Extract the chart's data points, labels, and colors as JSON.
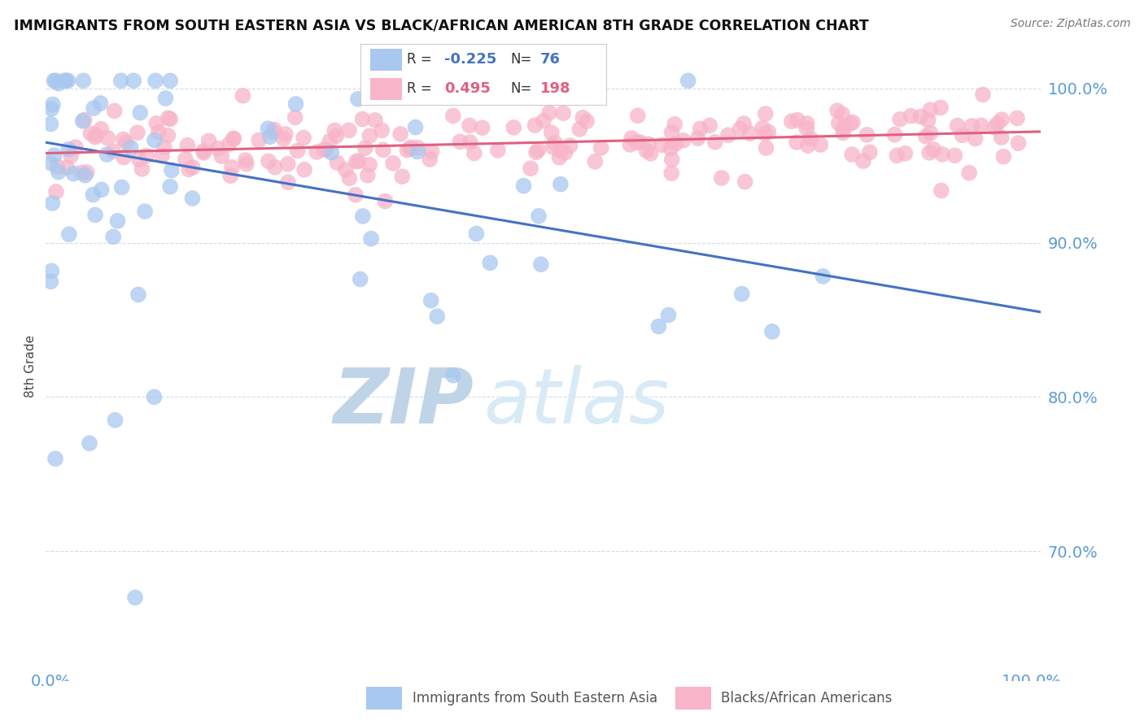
{
  "title": "IMMIGRANTS FROM SOUTH EASTERN ASIA VS BLACK/AFRICAN AMERICAN 8TH GRADE CORRELATION CHART",
  "source": "Source: ZipAtlas.com",
  "ylabel": "8th Grade",
  "blue_R": -0.225,
  "blue_N": 76,
  "pink_R": 0.495,
  "pink_N": 198,
  "blue_color": "#a8c8f0",
  "pink_color": "#f8b4c8",
  "blue_line_color": "#4472c4",
  "pink_line_color": "#e06080",
  "watermark_zip_color": "#c8d8ec",
  "watermark_atlas_color": "#d8e8f4",
  "axis_label_color": "#5b9bd5",
  "grid_color": "#d0dde8",
  "background_color": "#ffffff",
  "ylim_min": 0.625,
  "ylim_max": 1.015,
  "xlim_min": -0.005,
  "xlim_max": 1.01,
  "ytick_vals": [
    0.7,
    0.8,
    0.9,
    1.0
  ],
  "ytick_labels": [
    "70.0%",
    "80.0%",
    "90.0%",
    "100.0%"
  ],
  "blue_trend_x0": 0.0,
  "blue_trend_y0": 0.965,
  "blue_trend_x1": 1.0,
  "blue_trend_y1": 0.855,
  "pink_trend_x0": 0.0,
  "pink_trend_y0": 0.958,
  "pink_trend_x1": 1.0,
  "pink_trend_y1": 0.972
}
